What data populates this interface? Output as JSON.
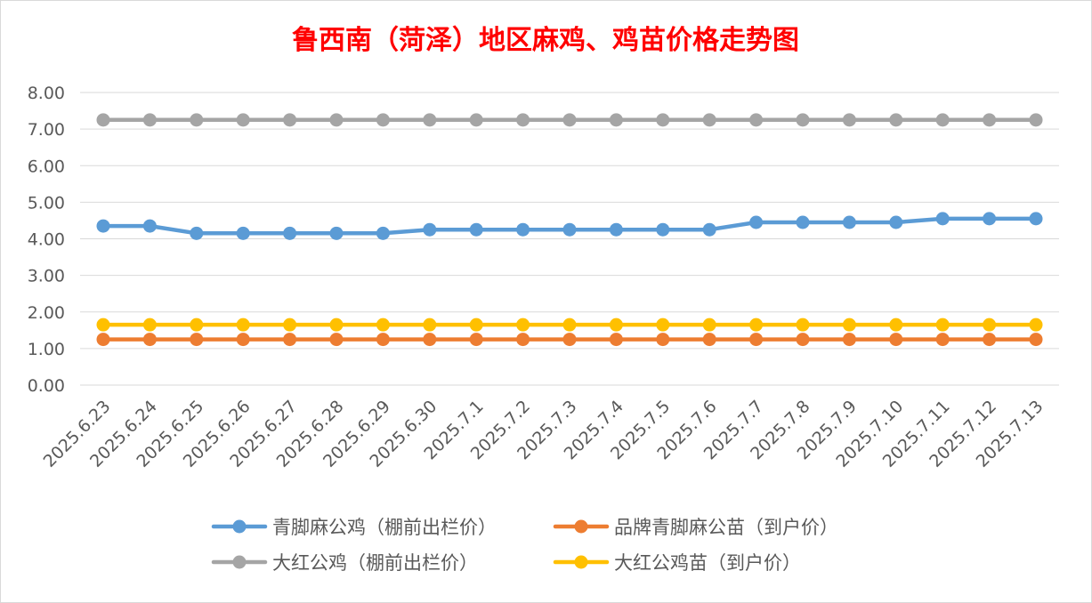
{
  "chart_data": {
    "type": "line",
    "title": "鲁西南（菏泽）地区麻鸡、鸡苗价格走势图",
    "xlabel": "",
    "ylabel": "",
    "ylim": [
      0,
      8
    ],
    "y_ticks": [
      "0.00",
      "1.00",
      "2.00",
      "3.00",
      "4.00",
      "5.00",
      "6.00",
      "7.00",
      "8.00"
    ],
    "grid": true,
    "legend_position": "bottom",
    "categories": [
      "2025.6.23",
      "2025.6.24",
      "2025.6.25",
      "2025.6.26",
      "2025.6.27",
      "2025.6.28",
      "2025.6.29",
      "2025.6.30",
      "2025.7.1",
      "2025.7.2",
      "2025.7.3",
      "2025.7.4",
      "2025.7.5",
      "2025.7.6",
      "2025.7.7",
      "2025.7.8",
      "2025.7.9",
      "2025.7.10",
      "2025.7.11",
      "2025.7.12",
      "2025.7.13"
    ],
    "series": [
      {
        "name": "青脚麻公鸡（棚前出栏价）",
        "color": "#5b9bd5",
        "values": [
          4.35,
          4.35,
          4.15,
          4.15,
          4.15,
          4.15,
          4.15,
          4.25,
          4.25,
          4.25,
          4.25,
          4.25,
          4.25,
          4.25,
          4.45,
          4.45,
          4.45,
          4.45,
          4.55,
          4.55,
          4.55
        ]
      },
      {
        "name": "品牌青脚麻公苗（到户价）",
        "color": "#ed7d31",
        "values": [
          1.25,
          1.25,
          1.25,
          1.25,
          1.25,
          1.25,
          1.25,
          1.25,
          1.25,
          1.25,
          1.25,
          1.25,
          1.25,
          1.25,
          1.25,
          1.25,
          1.25,
          1.25,
          1.25,
          1.25,
          1.25
        ]
      },
      {
        "name": "大红公鸡（棚前出栏价）",
        "color": "#a5a5a5",
        "values": [
          7.25,
          7.25,
          7.25,
          7.25,
          7.25,
          7.25,
          7.25,
          7.25,
          7.25,
          7.25,
          7.25,
          7.25,
          7.25,
          7.25,
          7.25,
          7.25,
          7.25,
          7.25,
          7.25,
          7.25,
          7.25
        ]
      },
      {
        "name": "大红公鸡苗（到户价）",
        "color": "#ffc000",
        "values": [
          1.65,
          1.65,
          1.65,
          1.65,
          1.65,
          1.65,
          1.65,
          1.65,
          1.65,
          1.65,
          1.65,
          1.65,
          1.65,
          1.65,
          1.65,
          1.65,
          1.65,
          1.65,
          1.65,
          1.65,
          1.65
        ]
      }
    ],
    "colors": {
      "title": "#ff0000",
      "text": "#595959",
      "grid": "#d9d9d9"
    }
  }
}
